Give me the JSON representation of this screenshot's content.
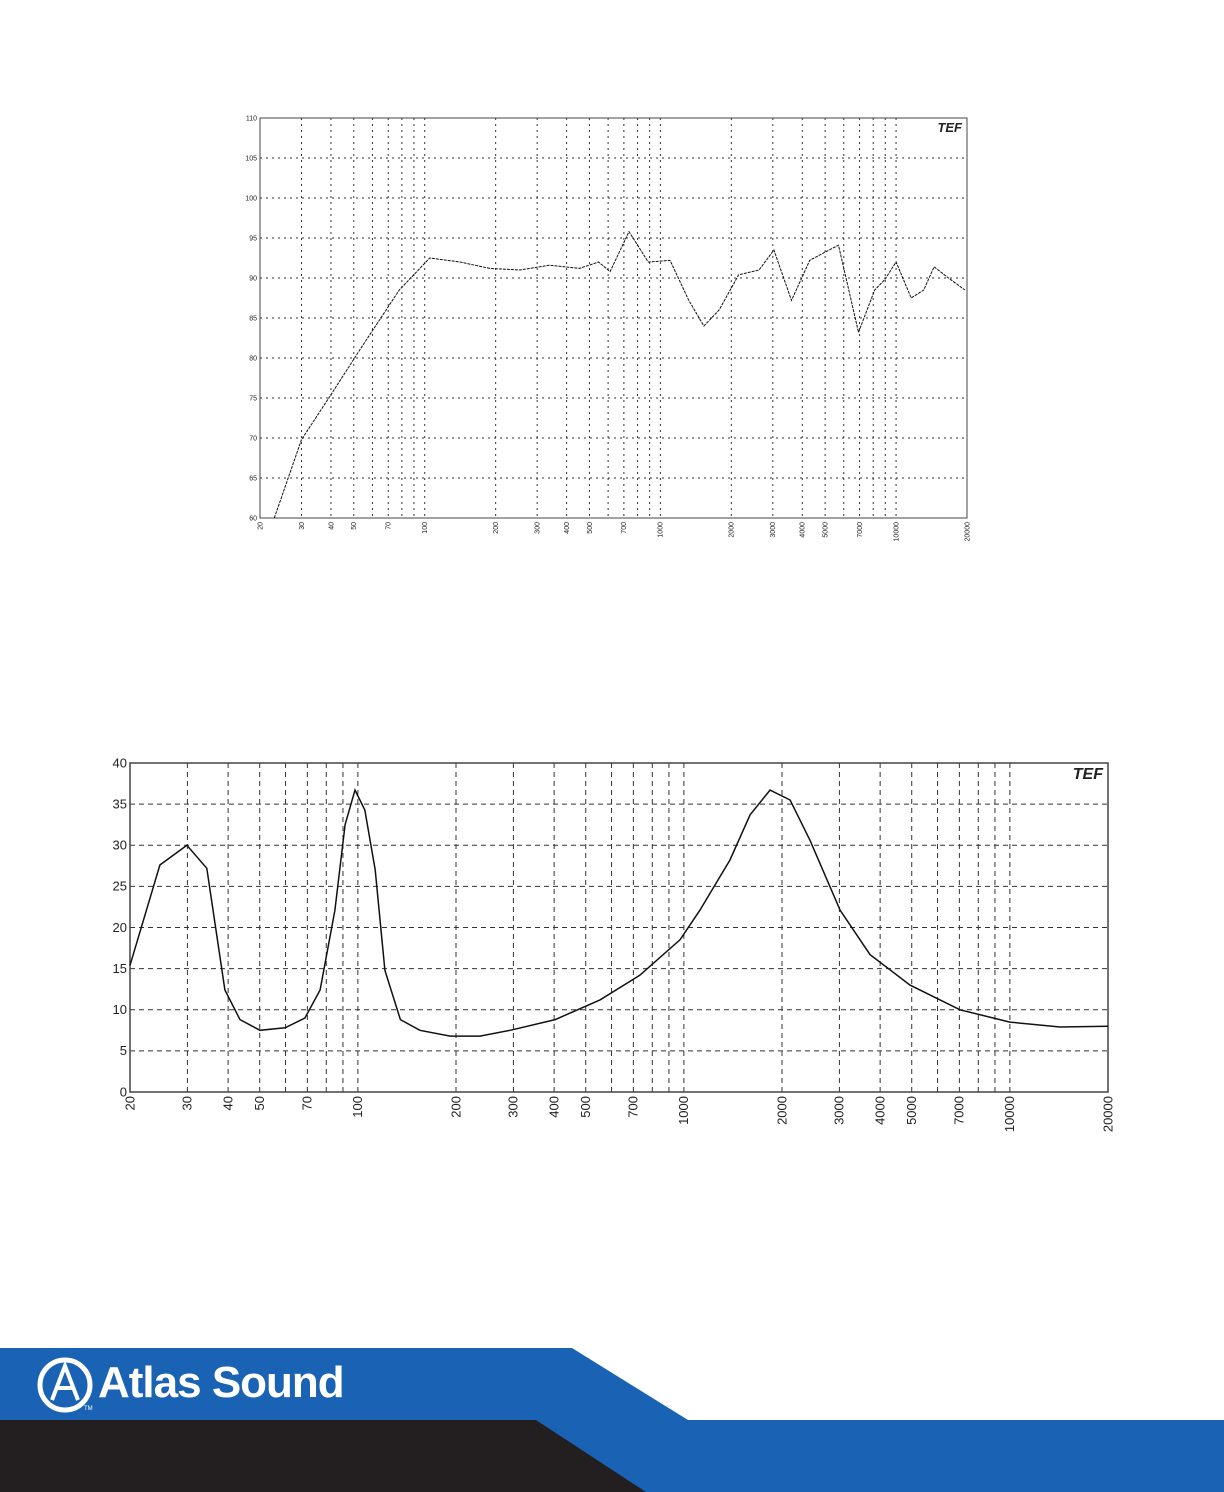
{
  "brand": {
    "name": "Atlas Sound",
    "tm": "TM",
    "chart_logo": "TEF",
    "colors": {
      "blue": "#1a63b4",
      "dark": "#231f20"
    }
  },
  "chart_data": [
    {
      "type": "line",
      "title": "",
      "xlabel": "",
      "ylabel": "",
      "xscale": "log",
      "xlim": [
        20,
        20000
      ],
      "ylim": [
        60,
        110
      ],
      "grid": true,
      "xticks": [
        20,
        30,
        40,
        50,
        70,
        100,
        200,
        300,
        400,
        500,
        700,
        1000,
        2000,
        3000,
        4000,
        5000,
        7000,
        10000,
        20000
      ],
      "yticks": [
        60,
        65,
        70,
        75,
        80,
        85,
        90,
        95,
        100,
        105,
        110
      ],
      "x": [
        23,
        30,
        40,
        53,
        78,
        105,
        141,
        189,
        254,
        338,
        454,
        546,
        612,
        736,
        888,
        1100,
        1320,
        1530,
        1775,
        2150,
        2620,
        3030,
        3600,
        4300,
        5200,
        5700,
        6930,
        8120,
        8960,
        10000,
        11600,
        13100,
        14500,
        16700,
        19600
      ],
      "y": [
        60,
        69.8,
        75.4,
        81,
        88.5,
        92.5,
        92,
        91.2,
        91,
        91.6,
        91.2,
        92,
        90.8,
        95.8,
        92,
        92.2,
        87.2,
        84,
        86,
        90.4,
        91,
        93.5,
        87.2,
        92.2,
        93.5,
        94.1,
        83.2,
        88.5,
        89.8,
        92,
        87.5,
        88.5,
        91.4,
        90,
        88.5
      ]
    },
    {
      "type": "line",
      "title": "",
      "xlabel": "",
      "ylabel": "",
      "xscale": "log",
      "xlim": [
        20,
        20000
      ],
      "ylim": [
        0,
        40
      ],
      "grid": true,
      "xticks": [
        20,
        30,
        40,
        50,
        70,
        100,
        200,
        300,
        400,
        500,
        700,
        1000,
        2000,
        3000,
        4000,
        5000,
        7000,
        10000,
        20000
      ],
      "yticks": [
        0,
        5,
        10,
        15,
        20,
        25,
        30,
        35,
        40
      ],
      "x": [
        20,
        24.7,
        29.9,
        34.4,
        39.1,
        43.5,
        50.1,
        59.8,
        68.8,
        76.6,
        85,
        91.4,
        98,
        105,
        113,
        121,
        135,
        155,
        192,
        237,
        293,
        403,
        553,
        733,
        973,
        1120,
        1384,
        1596,
        1838,
        2118,
        2438,
        3014,
        3724,
        4940,
        7030,
        10000,
        14260,
        20000
      ],
      "y": [
        15.4,
        27.6,
        30,
        27.2,
        12.4,
        8.8,
        7.5,
        7.8,
        9,
        12.4,
        22.1,
        32.5,
        36.7,
        34.3,
        27,
        14.8,
        8.8,
        7.5,
        6.8,
        6.8,
        7.5,
        8.8,
        11.2,
        14.2,
        18.5,
        22.1,
        28.2,
        33.7,
        36.7,
        35.5,
        30.6,
        22.1,
        16.7,
        13,
        10,
        8.5,
        7.9,
        8
      ]
    }
  ]
}
